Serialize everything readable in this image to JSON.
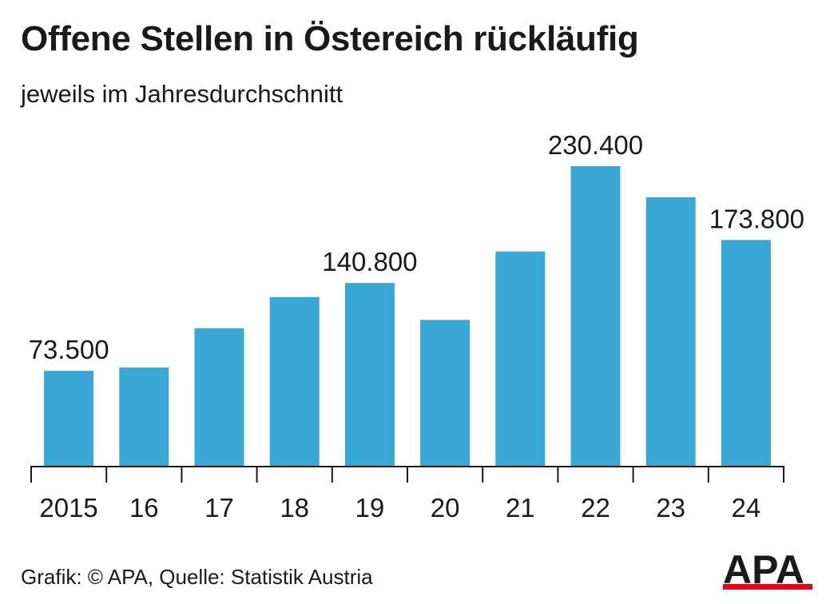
{
  "header": {
    "title": "Offene Stellen in Östereich rückläufig",
    "subtitle": "jeweils im Jahresdurchschnitt"
  },
  "footer": {
    "source": "Grafik: © APA, Quelle: Statistik Austria",
    "logo_text": "APA"
  },
  "colors": {
    "bar": "#3aa8d6",
    "text": "#1a1a1a",
    "axis": "#1a1a1a",
    "logo_red": "#e2001a"
  },
  "chart_data": {
    "type": "bar",
    "categories": [
      "2015",
      "16",
      "17",
      "18",
      "19",
      "20",
      "21",
      "22",
      "23",
      "24"
    ],
    "values": [
      73500,
      76000,
      106000,
      130000,
      140800,
      112500,
      165000,
      230400,
      206500,
      173800
    ],
    "data_labels": [
      "73.500",
      "",
      "",
      "",
      "140.800",
      "",
      "",
      "230.400",
      "",
      "173.800"
    ],
    "title": "Offene Stellen in Östereich rückläufig",
    "subtitle": "jeweils im Jahresdurchschnitt",
    "xlabel": "",
    "ylabel": "",
    "ylim": [
      0,
      230400
    ],
    "grid": false,
    "legend": "none"
  }
}
